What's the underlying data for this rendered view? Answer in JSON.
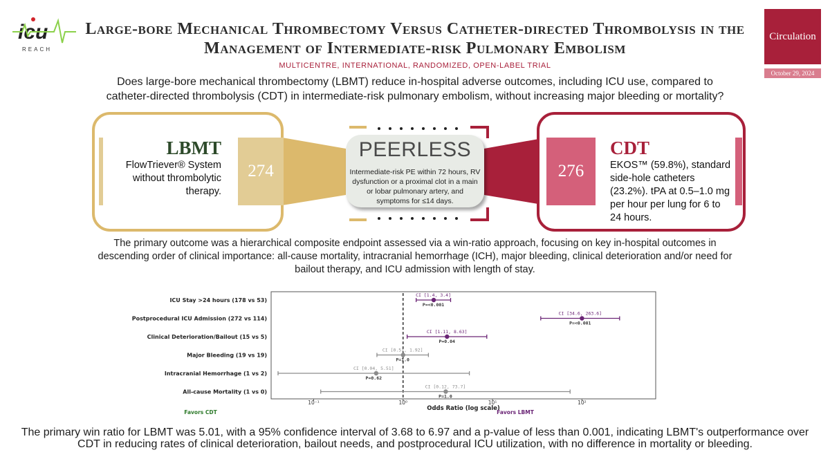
{
  "brand": {
    "logo_text": "icu",
    "logo_sub": "REACH"
  },
  "title": "Large-bore Mechanical Thrombectomy Versus Catheter-directed Thrombolysis in the Management of Intermediate-risk Pulmonary Embolism",
  "journal": {
    "name": "Circulation",
    "date": "October 29, 2024"
  },
  "design": "MULTICENTRE, INTERNATIONAL, RANDOMIZED, OPEN-LABEL TRIAL",
  "question": "Does large-bore mechanical thrombectomy (LBMT) reduce in-hospital adverse outcomes, including ICU use, compared to catheter-directed thrombolysis (CDT) in intermediate-risk pulmonary embolism, without increasing major bleeding or mortality?",
  "lbmt": {
    "name": "LBMT",
    "n": "274",
    "description": "FlowTriever® System without thrombolytic therapy."
  },
  "cdt": {
    "name": "CDT",
    "n": "276",
    "description": "EKOS™ (59.8%), standard side-hole catheters (23.2%). tPA at 0.5–1.0 mg per hour per lung for 6 to 24 hours."
  },
  "trial": {
    "name": "PEERLESS",
    "population": "Intermediate-risk PE within 72 hours, RV dysfunction or a proximal clot in a main or lobar pulmonary artery, and symptoms for ≤14 days."
  },
  "primary_outcome": "The primary outcome was a hierarchical composite endpoint assessed via a win-ratio approach, focusing on key in-hospital outcomes in descending order of clinical importance: all-cause mortality, intracranial hemorrhage (ICH), major bleeding, clinical deterioration and/or need for bailout therapy, and ICU admission with length of stay.",
  "chart_data": {
    "type": "scatter",
    "xlabel": "Odds Ratio (log scale)",
    "xscale": "log",
    "xlim": [
      0.04,
      600
    ],
    "xticks": [
      0.1,
      1,
      10,
      100
    ],
    "reference_line": 1,
    "left_label": "Favors CDT",
    "right_label": "Favors LBMT",
    "rows": [
      {
        "label": "ICU Stay >24 hours (178 vs 53)",
        "or": 2.2,
        "ci_low": 1.4,
        "ci_high": 3.4,
        "ci_text": "CI [1.4, 3.4]",
        "p_text": "P=<0.001",
        "significant": true
      },
      {
        "label": "Postprocedural ICU Admission (272 vs 114)",
        "or": 100,
        "ci_low": 34.6,
        "ci_high": 263.6,
        "ci_text": "CI [34.6, 263.6]",
        "p_text": "P=<0.001",
        "significant": true
      },
      {
        "label": "Clinical Deterioration/Bailout (15 vs 5)",
        "or": 3.1,
        "ci_low": 1.11,
        "ci_high": 8.63,
        "ci_text": "CI [1.11, 8.63]",
        "p_text": "P=0.04",
        "significant": true
      },
      {
        "label": "Major Bleeding (19 vs 19)",
        "or": 1.0,
        "ci_low": 0.51,
        "ci_high": 1.92,
        "ci_text": "CI [0.51, 1.92]",
        "p_text": "P=1.0",
        "significant": false
      },
      {
        "label": "Intracranial Hemorrhage (1 vs 2)",
        "or": 0.5,
        "ci_low": 0.04,
        "ci_high": 5.51,
        "ci_text": "CI [0.04, 5.51]",
        "p_text": "P=0.62",
        "significant": false
      },
      {
        "label": "All-cause Mortality (1 vs 0)",
        "or": 3.0,
        "ci_low": 0.12,
        "ci_high": 73.7,
        "ci_text": "CI [0.12, 73.7]",
        "p_text": "P=1.0",
        "significant": false
      }
    ],
    "colors": {
      "significant": "#6a2475",
      "nonsignificant": "#8c8c8c",
      "favors_cdt": "#2d7a2a",
      "favors_lbmt": "#6a2475"
    }
  },
  "summary": "The primary win ratio for LBMT was 5.01, with a 95% confidence interval of 3.68 to 6.97 and a p-value of less than 0.001, indicating LBMT's outperformance over CDT in reducing rates of clinical deterioration, bailout needs, and postprocedural ICU utilization, with no difference in mortality or bleeding.",
  "colors": {
    "gold": "#dcb96c",
    "crimson": "#a8203a",
    "pink": "#d4607a",
    "green": "#2d4a2a"
  }
}
